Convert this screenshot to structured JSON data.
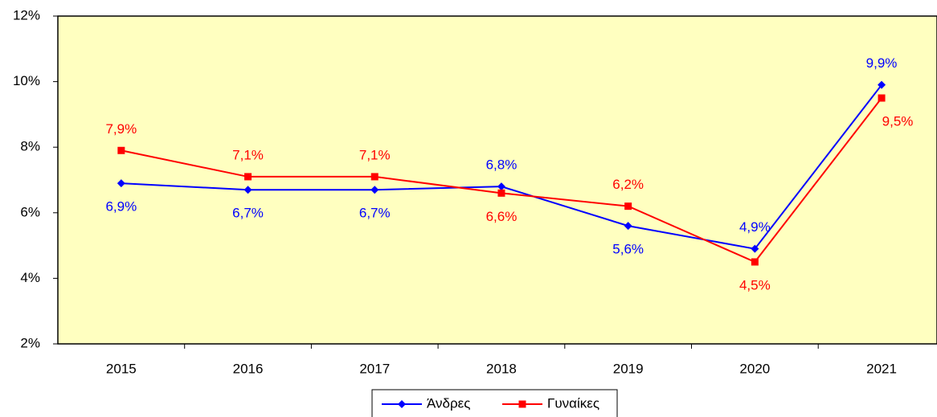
{
  "chart_data": {
    "type": "line",
    "categories": [
      "2015",
      "2016",
      "2017",
      "2018",
      "2019",
      "2020",
      "2021"
    ],
    "series": [
      {
        "name": "Άνδρες",
        "color": "#0000ff",
        "marker": "diamond",
        "values": [
          6.9,
          6.7,
          6.7,
          6.8,
          5.6,
          4.9,
          9.9
        ],
        "value_labels": [
          "6,9%",
          "6,7%",
          "6,7%",
          "6,8%",
          "5,6%",
          "4,9%",
          "9,9%"
        ]
      },
      {
        "name": "Γυναίκες",
        "color": "#ff0000",
        "marker": "square",
        "values": [
          7.9,
          7.1,
          7.1,
          6.6,
          6.2,
          4.5,
          9.5
        ],
        "value_labels": [
          "7,9%",
          "7,1%",
          "7,1%",
          "6,6%",
          "6,2%",
          "4,5%",
          "9,5%"
        ]
      }
    ],
    "ylim": [
      2,
      12
    ],
    "yticks": [
      {
        "value": 2,
        "label": "2%"
      },
      {
        "value": 4,
        "label": "4%"
      },
      {
        "value": 6,
        "label": "6%"
      },
      {
        "value": 8,
        "label": "8%"
      },
      {
        "value": 10,
        "label": "10%"
      },
      {
        "value": 12,
        "label": "12%"
      }
    ],
    "plot_background": "#ffffc0",
    "legend": "bottom"
  }
}
